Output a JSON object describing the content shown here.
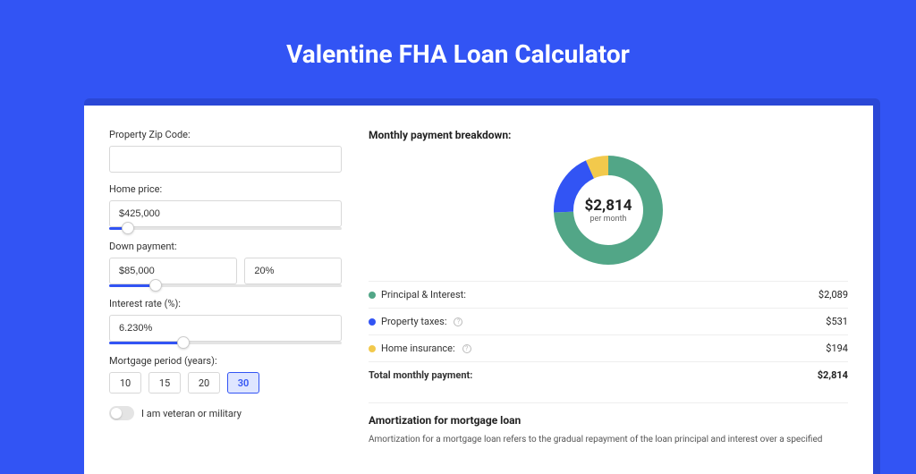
{
  "page_title": "Valentine FHA Loan Calculator",
  "colors": {
    "page_bg": "#3254f4",
    "card_wrap_bg": "#2a47d6",
    "card_bg": "#ffffff",
    "accent": "#3254f4",
    "text": "#333333",
    "muted": "#666666",
    "border": "#d8d8d8"
  },
  "form": {
    "zip": {
      "label": "Property Zip Code:",
      "value": ""
    },
    "home_price": {
      "label": "Home price:",
      "value": "$425,000",
      "slider_pct": 8
    },
    "down_payment": {
      "label": "Down payment:",
      "amount": "$85,000",
      "percent": "20%",
      "slider_pct": 20
    },
    "interest_rate": {
      "label": "Interest rate (%):",
      "value": "6.230%",
      "slider_pct": 32
    },
    "mortgage_period": {
      "label": "Mortgage period (years):",
      "options": [
        "10",
        "15",
        "20",
        "30"
      ],
      "selected": "30"
    },
    "veteran": {
      "label": "I am veteran or military",
      "checked": false
    }
  },
  "breakdown": {
    "title": "Monthly payment breakdown:",
    "total_amount": "$2,814",
    "total_sub": "per month",
    "donut": {
      "radius": 50,
      "stroke_width": 22,
      "slices": [
        {
          "label": "Principal & Interest",
          "value": 2089,
          "color": "#52a687",
          "pct": 74.2
        },
        {
          "label": "Property taxes",
          "value": 531,
          "color": "#3254f4",
          "pct": 18.9
        },
        {
          "label": "Home insurance",
          "value": 194,
          "color": "#f2c94c",
          "pct": 6.9
        }
      ]
    },
    "items": [
      {
        "dot": "#52a687",
        "label": "Principal & Interest:",
        "info": false,
        "value": "$2,089"
      },
      {
        "dot": "#3254f4",
        "label": "Property taxes:",
        "info": true,
        "value": "$531"
      },
      {
        "dot": "#f2c94c",
        "label": "Home insurance:",
        "info": true,
        "value": "$194"
      }
    ],
    "total_row": {
      "label": "Total monthly payment:",
      "value": "$2,814"
    }
  },
  "amortization": {
    "title": "Amortization for mortgage loan",
    "text": "Amortization for a mortgage loan refers to the gradual repayment of the loan principal and interest over a specified"
  }
}
